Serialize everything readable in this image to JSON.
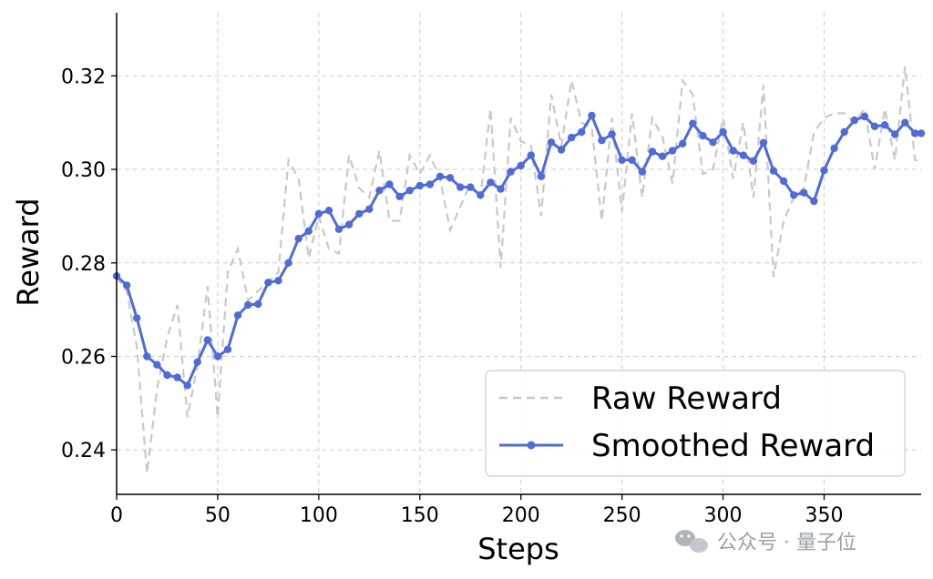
{
  "colors": {
    "raw": "#c8c8c8",
    "smoothed": "#4f6bd8",
    "grid": "#cccccc",
    "watermark": "#9aa0a6"
  },
  "watermark": {
    "icon": "wechat-icon",
    "text": "公众号 · 量子位"
  },
  "chart_data": {
    "type": "line",
    "title": "",
    "xlabel": "Steps",
    "ylabel": "Reward",
    "xlim": [
      0,
      398
    ],
    "ylim": [
      0.2305,
      0.3335
    ],
    "xticks": [
      0,
      50,
      100,
      150,
      200,
      250,
      300,
      350
    ],
    "xtick_labels": [
      "0",
      "50",
      "100",
      "150",
      "200",
      "250",
      "300",
      "350"
    ],
    "yticks": [
      0.24,
      0.26,
      0.28,
      0.3,
      0.32
    ],
    "ytick_labels": [
      "0.24",
      "0.26",
      "0.28",
      "0.30",
      "0.32"
    ],
    "grid": true,
    "legend_position": "bottom-right",
    "series": [
      {
        "name": "Raw Reward",
        "style": "dashed",
        "x": [
          0,
          5,
          10,
          15,
          20,
          25,
          30,
          35,
          40,
          45,
          50,
          55,
          60,
          65,
          70,
          75,
          80,
          85,
          90,
          95,
          100,
          105,
          110,
          115,
          120,
          125,
          130,
          135,
          140,
          145,
          150,
          155,
          160,
          165,
          170,
          175,
          180,
          185,
          190,
          195,
          200,
          205,
          210,
          215,
          220,
          225,
          230,
          235,
          240,
          245,
          250,
          255,
          260,
          265,
          270,
          275,
          280,
          285,
          290,
          295,
          300,
          305,
          310,
          315,
          320,
          325,
          330,
          335,
          340,
          345,
          350,
          355,
          360,
          365,
          370,
          375,
          380,
          385,
          390,
          395,
          398
        ],
        "values": [
          0.277,
          0.274,
          0.262,
          0.235,
          0.253,
          0.264,
          0.271,
          0.247,
          0.258,
          0.275,
          0.247,
          0.278,
          0.283,
          0.272,
          0.274,
          0.276,
          0.278,
          0.302,
          0.298,
          0.281,
          0.29,
          0.283,
          0.282,
          0.303,
          0.296,
          0.294,
          0.304,
          0.289,
          0.289,
          0.303,
          0.299,
          0.303,
          0.298,
          0.287,
          0.292,
          0.297,
          0.294,
          0.313,
          0.279,
          0.311,
          0.306,
          0.305,
          0.29,
          0.316,
          0.305,
          0.319,
          0.31,
          0.309,
          0.289,
          0.311,
          0.291,
          0.312,
          0.294,
          0.311,
          0.307,
          0.297,
          0.319,
          0.316,
          0.299,
          0.3,
          0.311,
          0.298,
          0.31,
          0.294,
          0.318,
          0.277,
          0.289,
          0.294,
          0.296,
          0.308,
          0.311,
          0.312,
          0.312,
          0.31,
          0.313,
          0.3,
          0.313,
          0.302,
          0.322,
          0.302,
          0.302
        ]
      },
      {
        "name": "Smoothed Reward",
        "style": "solid-markers",
        "x": [
          0,
          5,
          10,
          15,
          20,
          25,
          30,
          35,
          40,
          45,
          50,
          55,
          60,
          65,
          70,
          75,
          80,
          85,
          90,
          95,
          100,
          105,
          110,
          115,
          120,
          125,
          130,
          135,
          140,
          145,
          150,
          155,
          160,
          165,
          170,
          175,
          180,
          185,
          190,
          195,
          200,
          205,
          210,
          215,
          220,
          225,
          230,
          235,
          240,
          245,
          250,
          255,
          260,
          265,
          270,
          275,
          280,
          285,
          290,
          295,
          300,
          305,
          310,
          315,
          320,
          325,
          330,
          335,
          340,
          345,
          350,
          355,
          360,
          365,
          370,
          375,
          380,
          385,
          390,
          395,
          398
        ],
        "values": [
          0.2772,
          0.2752,
          0.2682,
          0.26,
          0.2582,
          0.256,
          0.2555,
          0.2538,
          0.2588,
          0.2635,
          0.26,
          0.2615,
          0.2688,
          0.271,
          0.2712,
          0.2758,
          0.2762,
          0.28,
          0.2852,
          0.2868,
          0.2905,
          0.2912,
          0.2872,
          0.2882,
          0.2905,
          0.2915,
          0.2955,
          0.2968,
          0.2942,
          0.2955,
          0.2965,
          0.2968,
          0.2985,
          0.2982,
          0.2962,
          0.2962,
          0.2945,
          0.2972,
          0.2958,
          0.2995,
          0.3008,
          0.303,
          0.2985,
          0.3058,
          0.3042,
          0.3068,
          0.308,
          0.3115,
          0.3062,
          0.3075,
          0.302,
          0.302,
          0.2995,
          0.3038,
          0.3028,
          0.304,
          0.3055,
          0.3098,
          0.3072,
          0.3058,
          0.308,
          0.304,
          0.303,
          0.3018,
          0.3057,
          0.2997,
          0.2975,
          0.2945,
          0.295,
          0.2932,
          0.2998,
          0.3045,
          0.308,
          0.3105,
          0.3113,
          0.3092,
          0.3095,
          0.3075,
          0.31,
          0.3077,
          0.3077
        ]
      }
    ]
  }
}
